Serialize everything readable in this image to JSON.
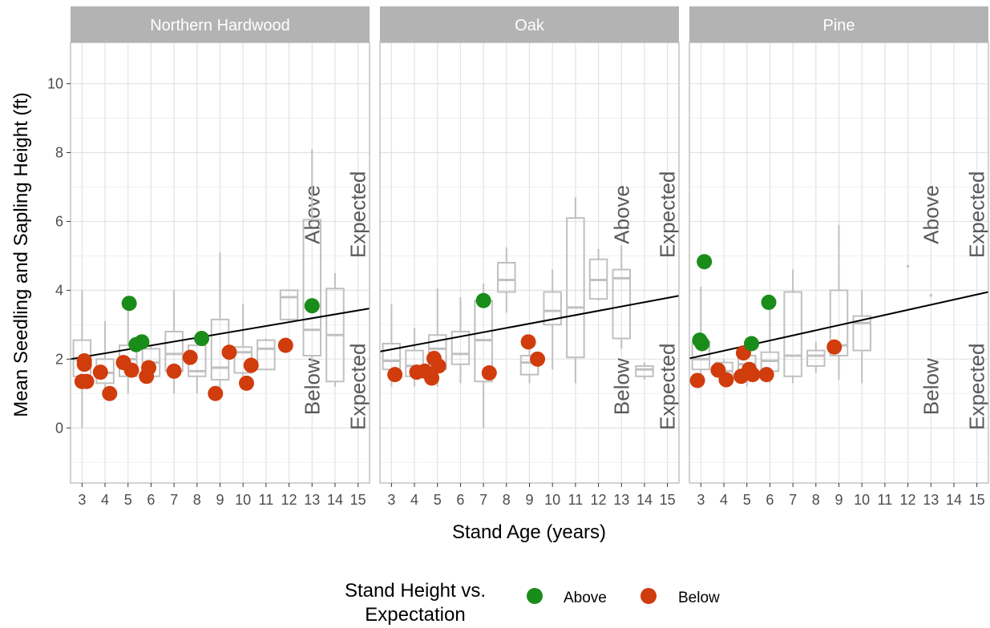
{
  "chart_data": {
    "type": "scatter",
    "xlabel": "Stand Age (years)",
    "ylabel": "Mean Seedling and Sapling Height (ft)",
    "xlim": [
      2.5,
      15.5
    ],
    "ylim": [
      -1.6,
      11.2
    ],
    "x_ticks": [
      3,
      4,
      5,
      6,
      7,
      8,
      9,
      10,
      11,
      12,
      13,
      14,
      15
    ],
    "y_ticks": [
      0,
      2,
      4,
      6,
      8,
      10
    ],
    "grid": true,
    "legend": {
      "title_line1": "Stand Height vs.",
      "title_line2": "Expectation",
      "position": "bottom",
      "entries": [
        {
          "label": "Above",
          "color": "#1a8c1a"
        },
        {
          "label": "Below",
          "color": "#d13c0c"
        }
      ]
    },
    "colors": {
      "Above": "#1a8c1a",
      "Below": "#d13c0c",
      "box": "#c0c0c0",
      "trend": "#000000",
      "strip": "#b3b3b3"
    },
    "annotations": {
      "above": "Above",
      "below": "Below",
      "expected": "Expected"
    },
    "panels": [
      {
        "title": "Northern Hardwood",
        "trend": [
          [
            2.5,
            2.0
          ],
          [
            15.5,
            3.47
          ]
        ],
        "boxes": [
          {
            "x": 3,
            "q1": 1.5,
            "median": 2.0,
            "q3": 2.55,
            "lo": 0.0,
            "hi": 4.0
          },
          {
            "x": 4,
            "q1": 1.3,
            "median": 1.6,
            "q3": 2.0,
            "lo": 1.0,
            "hi": 3.1
          },
          {
            "x": 5,
            "q1": 1.5,
            "median": 2.0,
            "q3": 2.4,
            "lo": 1.0,
            "hi": 3.6
          },
          {
            "x": 6,
            "q1": 1.5,
            "median": 1.9,
            "q3": 2.3,
            "lo": 1.3,
            "hi": 2.4
          },
          {
            "x": 7,
            "q1": 1.65,
            "median": 2.15,
            "q3": 2.8,
            "lo": 1.0,
            "hi": 4.0
          },
          {
            "x": 8,
            "q1": 1.5,
            "median": 1.65,
            "q3": 2.4,
            "lo": 1.0,
            "hi": 2.6
          },
          {
            "x": 9,
            "q1": 1.4,
            "median": 1.75,
            "q3": 3.15,
            "lo": 1.0,
            "hi": 5.1
          },
          {
            "x": 10,
            "q1": 1.6,
            "median": 2.2,
            "q3": 2.35,
            "lo": 1.3,
            "hi": 3.6
          },
          {
            "x": 11,
            "q1": 1.7,
            "median": 2.3,
            "q3": 2.55,
            "lo": 1.7,
            "hi": 2.6
          },
          {
            "x": 12,
            "q1": 3.15,
            "median": 3.8,
            "q3": 4.0,
            "lo": 3.1,
            "hi": 4.0
          },
          {
            "x": 13,
            "q1": 2.1,
            "median": 2.85,
            "q3": 6.05,
            "lo": 1.9,
            "hi": 8.1
          },
          {
            "x": 14,
            "q1": 1.35,
            "median": 2.7,
            "q3": 4.05,
            "lo": 1.2,
            "hi": 4.5
          }
        ],
        "points": [
          {
            "x": 3.0,
            "y": 1.35,
            "group": "Below"
          },
          {
            "x": 3.1,
            "y": 1.85,
            "group": "Below"
          },
          {
            "x": 3.2,
            "y": 1.35,
            "group": "Below"
          },
          {
            "x": 3.1,
            "y": 1.95,
            "group": "Below"
          },
          {
            "x": 3.8,
            "y": 1.62,
            "group": "Below"
          },
          {
            "x": 4.2,
            "y": 1.0,
            "group": "Below"
          },
          {
            "x": 4.8,
            "y": 1.9,
            "group": "Below"
          },
          {
            "x": 5.05,
            "y": 3.62,
            "group": "Above"
          },
          {
            "x": 5.15,
            "y": 1.68,
            "group": "Below"
          },
          {
            "x": 5.35,
            "y": 2.42,
            "group": "Above"
          },
          {
            "x": 5.6,
            "y": 2.5,
            "group": "Above"
          },
          {
            "x": 5.8,
            "y": 1.5,
            "group": "Below"
          },
          {
            "x": 5.9,
            "y": 1.75,
            "group": "Below"
          },
          {
            "x": 7.0,
            "y": 1.65,
            "group": "Below"
          },
          {
            "x": 7.7,
            "y": 2.05,
            "group": "Below"
          },
          {
            "x": 8.2,
            "y": 2.6,
            "group": "Above"
          },
          {
            "x": 8.8,
            "y": 1.0,
            "group": "Below"
          },
          {
            "x": 9.4,
            "y": 2.2,
            "group": "Below"
          },
          {
            "x": 10.15,
            "y": 1.3,
            "group": "Below"
          },
          {
            "x": 10.35,
            "y": 1.82,
            "group": "Below"
          },
          {
            "x": 11.85,
            "y": 2.4,
            "group": "Below"
          },
          {
            "x": 13.0,
            "y": 3.55,
            "group": "Above"
          }
        ]
      },
      {
        "title": "Oak",
        "trend": [
          [
            2.5,
            2.22
          ],
          [
            15.5,
            3.84
          ]
        ],
        "boxes": [
          {
            "x": 3,
            "q1": 1.7,
            "median": 1.95,
            "q3": 2.45,
            "lo": 1.2,
            "hi": 3.6
          },
          {
            "x": 4,
            "q1": 1.5,
            "median": 1.8,
            "q3": 2.25,
            "lo": 1.2,
            "hi": 2.9
          },
          {
            "x": 5,
            "q1": 1.7,
            "median": 2.3,
            "q3": 2.7,
            "lo": 1.2,
            "hi": 4.05
          },
          {
            "x": 6,
            "q1": 1.85,
            "median": 2.15,
            "q3": 2.8,
            "lo": 1.3,
            "hi": 3.8
          },
          {
            "x": 7,
            "q1": 1.35,
            "median": 2.55,
            "q3": 3.7,
            "lo": 0.0,
            "hi": 4.2
          },
          {
            "x": 8,
            "q1": 3.95,
            "median": 4.3,
            "q3": 4.8,
            "lo": 3.35,
            "hi": 5.25
          },
          {
            "x": 9,
            "q1": 1.55,
            "median": 1.9,
            "q3": 2.1,
            "lo": 1.3,
            "hi": 2.4
          },
          {
            "x": 10,
            "q1": 3.0,
            "median": 3.4,
            "q3": 3.95,
            "lo": 1.7,
            "hi": 4.6
          },
          {
            "x": 11,
            "q1": 2.05,
            "median": 3.5,
            "q3": 6.1,
            "lo": 1.3,
            "hi": 6.7
          },
          {
            "x": 12,
            "q1": 3.75,
            "median": 4.3,
            "q3": 4.9,
            "lo": 3.7,
            "hi": 5.2
          },
          {
            "x": 13,
            "q1": 2.6,
            "median": 4.35,
            "q3": 4.6,
            "lo": 2.3,
            "hi": 5.3
          },
          {
            "x": 14,
            "q1": 1.5,
            "median": 1.7,
            "q3": 1.8,
            "lo": 1.4,
            "hi": 1.9
          }
        ],
        "points": [
          {
            "x": 3.15,
            "y": 1.55,
            "group": "Below"
          },
          {
            "x": 4.1,
            "y": 1.62,
            "group": "Below"
          },
          {
            "x": 4.45,
            "y": 1.65,
            "group": "Below"
          },
          {
            "x": 4.75,
            "y": 1.45,
            "group": "Below"
          },
          {
            "x": 4.85,
            "y": 2.02,
            "group": "Below"
          },
          {
            "x": 5.05,
            "y": 1.8,
            "group": "Below"
          },
          {
            "x": 7.0,
            "y": 3.7,
            "group": "Above"
          },
          {
            "x": 7.25,
            "y": 1.6,
            "group": "Below"
          },
          {
            "x": 8.95,
            "y": 2.5,
            "group": "Below"
          },
          {
            "x": 9.35,
            "y": 2.0,
            "group": "Below"
          }
        ]
      },
      {
        "title": "Pine",
        "trend": [
          [
            2.5,
            2.02
          ],
          [
            15.5,
            3.95
          ]
        ],
        "boxes": [
          {
            "x": 3,
            "q1": 1.7,
            "median": 2.0,
            "q3": 2.5,
            "lo": 1.3,
            "hi": 4.1
          },
          {
            "x": 4,
            "q1": 1.5,
            "median": 1.65,
            "q3": 1.9,
            "lo": 1.3,
            "hi": 2.0
          },
          {
            "x": 5,
            "q1": 1.55,
            "median": 1.85,
            "q3": 2.1,
            "lo": 1.2,
            "hi": 2.3
          },
          {
            "x": 6,
            "q1": 1.65,
            "median": 1.95,
            "q3": 2.2,
            "lo": 1.3,
            "hi": 3.6
          },
          {
            "x": 7,
            "q1": 1.5,
            "median": 2.1,
            "q3": 3.95,
            "lo": 1.3,
            "hi": 4.6
          },
          {
            "x": 8,
            "q1": 1.8,
            "median": 2.1,
            "q3": 2.25,
            "lo": 1.6,
            "hi": 2.5
          },
          {
            "x": 9,
            "q1": 2.1,
            "median": 2.4,
            "q3": 4.0,
            "lo": 1.4,
            "hi": 5.9
          },
          {
            "x": 10,
            "q1": 2.25,
            "median": 3.05,
            "q3": 3.25,
            "lo": 1.3,
            "hi": 4.0
          },
          {
            "x": 12,
            "q1": 4.7,
            "median": 4.7,
            "q3": 4.7,
            "lo": 4.7,
            "hi": 4.7
          },
          {
            "x": 13,
            "q1": 3.85,
            "median": 3.85,
            "q3": 3.85,
            "lo": 3.85,
            "hi": 3.85
          }
        ],
        "points": [
          {
            "x": 2.85,
            "y": 1.38,
            "group": "Below"
          },
          {
            "x": 2.95,
            "y": 2.55,
            "group": "Above"
          },
          {
            "x": 3.05,
            "y": 2.45,
            "group": "Above"
          },
          {
            "x": 3.15,
            "y": 4.83,
            "group": "Above"
          },
          {
            "x": 3.75,
            "y": 1.68,
            "group": "Below"
          },
          {
            "x": 4.1,
            "y": 1.4,
            "group": "Below"
          },
          {
            "x": 4.75,
            "y": 1.5,
            "group": "Below"
          },
          {
            "x": 4.85,
            "y": 2.18,
            "group": "Below"
          },
          {
            "x": 5.1,
            "y": 1.7,
            "group": "Below"
          },
          {
            "x": 5.2,
            "y": 2.45,
            "group": "Above"
          },
          {
            "x": 5.25,
            "y": 1.55,
            "group": "Below"
          },
          {
            "x": 5.85,
            "y": 1.55,
            "group": "Below"
          },
          {
            "x": 5.95,
            "y": 3.65,
            "group": "Above"
          },
          {
            "x": 8.8,
            "y": 2.35,
            "group": "Below"
          }
        ]
      }
    ]
  }
}
